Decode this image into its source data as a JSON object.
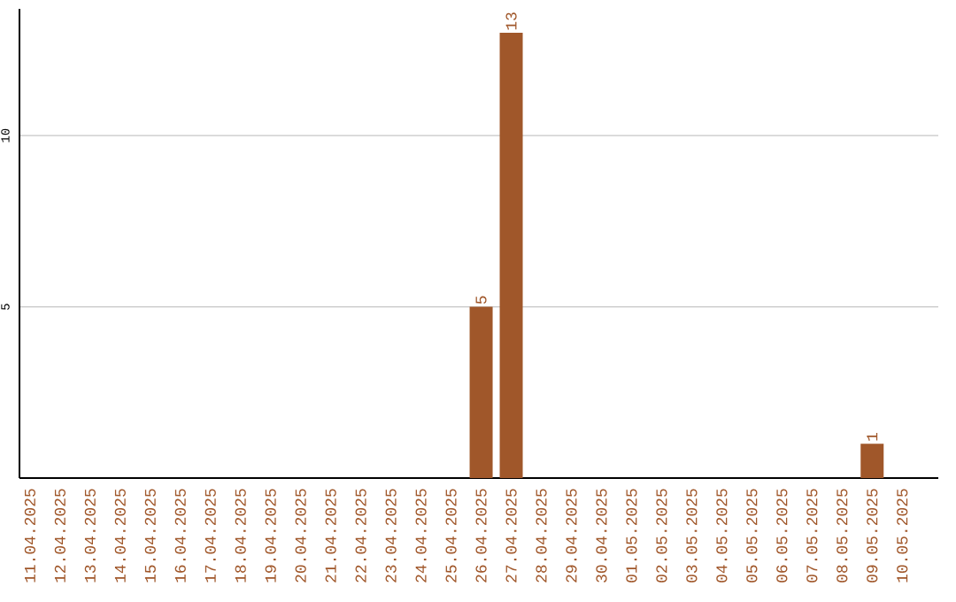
{
  "chart_data": {
    "type": "bar",
    "categories": [
      "11.04.2025",
      "12.04.2025",
      "13.04.2025",
      "14.04.2025",
      "15.04.2025",
      "16.04.2025",
      "17.04.2025",
      "18.04.2025",
      "19.04.2025",
      "20.04.2025",
      "21.04.2025",
      "22.04.2025",
      "23.04.2025",
      "24.04.2025",
      "25.04.2025",
      "26.04.2025",
      "27.04.2025",
      "28.04.2025",
      "29.04.2025",
      "30.04.2025",
      "01.05.2025",
      "02.05.2025",
      "03.05.2025",
      "04.05.2025",
      "05.05.2025",
      "06.05.2025",
      "07.05.2025",
      "08.05.2025",
      "09.05.2025",
      "10.05.2025"
    ],
    "values": [
      0,
      0,
      0,
      0,
      0,
      0,
      0,
      0,
      0,
      0,
      0,
      0,
      0,
      0,
      0,
      5,
      13,
      0,
      0,
      0,
      0,
      0,
      0,
      0,
      0,
      0,
      0,
      0,
      1,
      0
    ],
    "value_labels": [
      null,
      null,
      null,
      null,
      null,
      null,
      null,
      null,
      null,
      null,
      null,
      null,
      null,
      null,
      null,
      "5",
      "13",
      null,
      null,
      null,
      null,
      null,
      null,
      null,
      null,
      null,
      null,
      null,
      "1",
      null
    ],
    "color": "#a0572a",
    "ylim": [
      0,
      13.7
    ],
    "yticks": [
      5,
      10
    ],
    "grid": "y"
  }
}
